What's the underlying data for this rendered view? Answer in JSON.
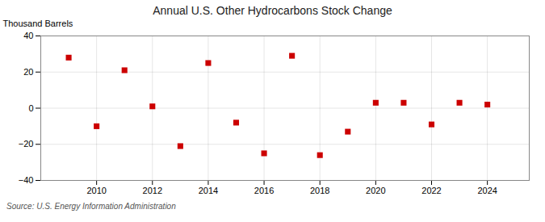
{
  "chart_data": {
    "type": "scatter",
    "title": "Annual U.S. Other Hydrocarbons Stock Change",
    "ylabel": "Thousand Barrels",
    "source": "Source: U.S. Energy Information Administration",
    "x": [
      2009,
      2010,
      2011,
      2012,
      2013,
      2014,
      2015,
      2016,
      2017,
      2018,
      2019,
      2020,
      2021,
      2022,
      2023,
      2024
    ],
    "values": [
      28,
      -10,
      21,
      1,
      -21,
      25,
      -8,
      -25,
      29,
      -26,
      -13,
      3,
      3,
      -9,
      3,
      2
    ],
    "color": "#cc0000",
    "marker": "square",
    "xlim": [
      2008,
      2025.5
    ],
    "xticks": [
      2010,
      2012,
      2014,
      2016,
      2018,
      2020,
      2022,
      2024
    ],
    "ylim": [
      -40,
      40
    ],
    "yticks": [
      -40,
      -20,
      0,
      20,
      40
    ],
    "grid": true
  }
}
